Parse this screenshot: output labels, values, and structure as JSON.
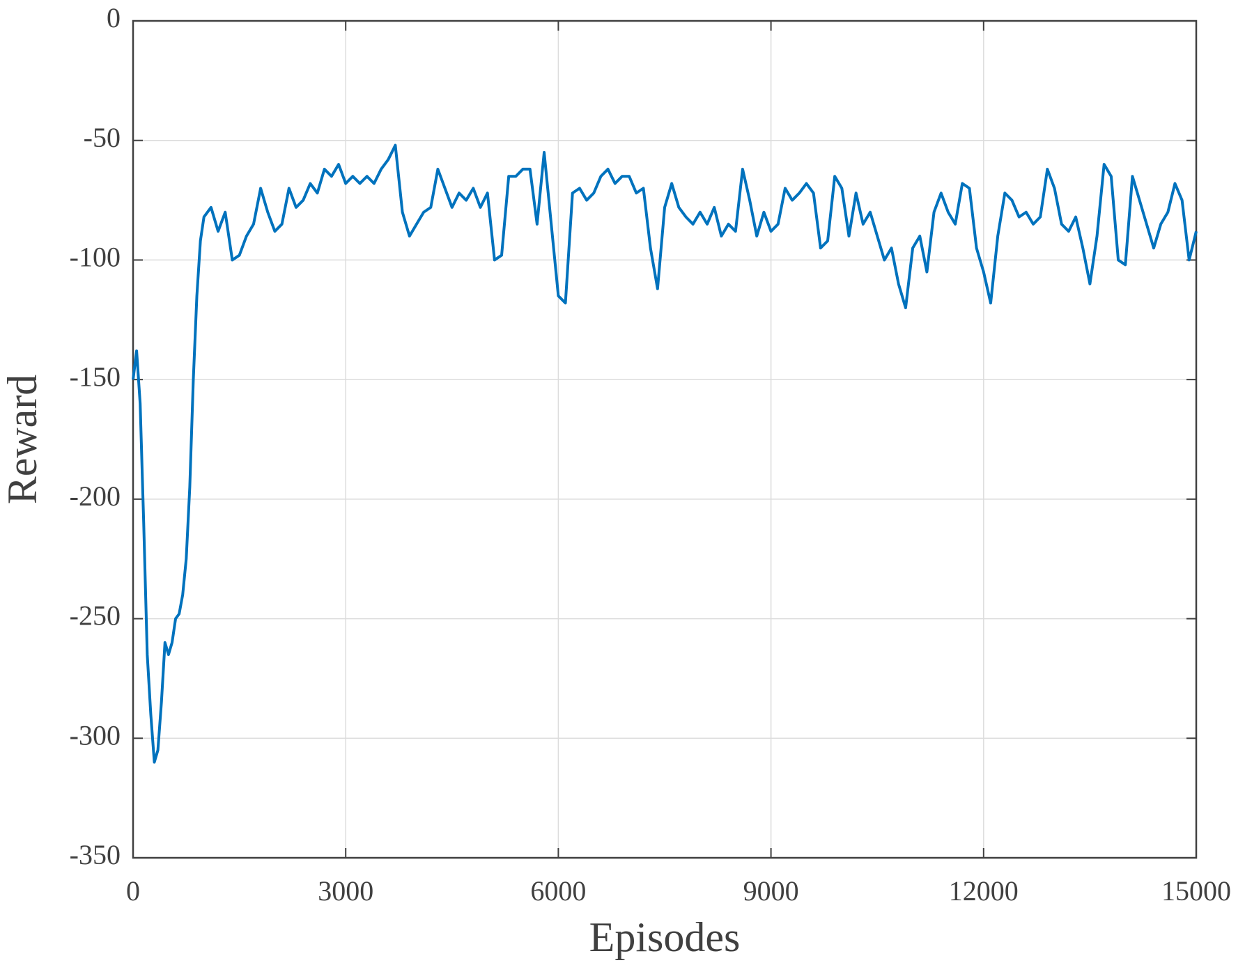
{
  "chart_data": {
    "type": "line",
    "xlabel": "Episodes",
    "ylabel": "Reward",
    "x": [
      0,
      50,
      100,
      150,
      200,
      250,
      300,
      350,
      400,
      450,
      500,
      550,
      600,
      650,
      700,
      750,
      800,
      850,
      900,
      950,
      1000,
      1100,
      1200,
      1300,
      1400,
      1500,
      1600,
      1700,
      1800,
      1900,
      2000,
      2100,
      2200,
      2300,
      2400,
      2500,
      2600,
      2700,
      2800,
      2900,
      3000,
      3100,
      3200,
      3300,
      3400,
      3500,
      3600,
      3700,
      3800,
      3900,
      4000,
      4100,
      4200,
      4300,
      4400,
      4500,
      4600,
      4700,
      4800,
      4900,
      5000,
      5100,
      5200,
      5300,
      5400,
      5500,
      5600,
      5700,
      5800,
      5900,
      6000,
      6100,
      6200,
      6300,
      6400,
      6500,
      6600,
      6700,
      6800,
      6900,
      7000,
      7100,
      7200,
      7300,
      7400,
      7500,
      7600,
      7700,
      7800,
      7900,
      8000,
      8100,
      8200,
      8300,
      8400,
      8500,
      8600,
      8700,
      8800,
      8900,
      9000,
      9100,
      9200,
      9300,
      9400,
      9500,
      9600,
      9700,
      9800,
      9900,
      10000,
      10100,
      10200,
      10300,
      10400,
      10500,
      10600,
      10700,
      10800,
      10900,
      11000,
      11100,
      11200,
      11300,
      11400,
      11500,
      11600,
      11700,
      11800,
      11900,
      12000,
      12100,
      12200,
      12300,
      12400,
      12500,
      12600,
      12700,
      12800,
      12900,
      13000,
      13100,
      13200,
      13300,
      13400,
      13500,
      13600,
      13700,
      13800,
      13900,
      14000,
      14100,
      14200,
      14300,
      14400,
      14500,
      14600,
      14700,
      14800,
      14900,
      15000
    ],
    "series": [
      {
        "color": "#0072bd",
        "values": [
          -150,
          -138,
          -160,
          -210,
          -265,
          -290,
          -310,
          -305,
          -285,
          -260,
          -265,
          -260,
          -250,
          -248,
          -240,
          -225,
          -195,
          -150,
          -115,
          -92,
          -82,
          -78,
          -88,
          -80,
          -100,
          -98,
          -90,
          -85,
          -70,
          -80,
          -88,
          -85,
          -70,
          -78,
          -75,
          -68,
          -72,
          -62,
          -65,
          -60,
          -68,
          -65,
          -68,
          -65,
          -68,
          -62,
          -58,
          -52,
          -80,
          -90,
          -85,
          -80,
          -78,
          -62,
          -70,
          -78,
          -72,
          -75,
          -70,
          -78,
          -72,
          -100,
          -98,
          -65,
          -65,
          -62,
          -62,
          -85,
          -55,
          -85,
          -115,
          -118,
          -72,
          -70,
          -75,
          -72,
          -65,
          -62,
          -68,
          -65,
          -65,
          -72,
          -70,
          -95,
          -112,
          -78,
          -68,
          -78,
          -82,
          -85,
          -80,
          -85,
          -78,
          -90,
          -85,
          -88,
          -62,
          -75,
          -90,
          -80,
          -88,
          -85,
          -70,
          -75,
          -72,
          -68,
          -72,
          -95,
          -92,
          -65,
          -70,
          -90,
          -72,
          -85,
          -80,
          -90,
          -100,
          -95,
          -110,
          -120,
          -95,
          -90,
          -105,
          -80,
          -72,
          -80,
          -85,
          -68,
          -70,
          -95,
          -105,
          -118,
          -90,
          -72,
          -75,
          -82,
          -80,
          -85,
          -82,
          -62,
          -70,
          -85,
          -88,
          -82,
          -95,
          -110,
          -90,
          -60,
          -65,
          -100,
          -102,
          -65,
          -75,
          -85,
          -95,
          -85,
          -80,
          -68,
          -75,
          -100,
          -88
        ]
      }
    ],
    "xlim": [
      0,
      15000
    ],
    "xticks": [
      0,
      3000,
      6000,
      9000,
      12000,
      15000
    ],
    "ylim": [
      -350,
      0
    ],
    "yticks": [
      -350,
      -300,
      -250,
      -200,
      -150,
      -100,
      -50,
      0
    ],
    "grid": true
  }
}
